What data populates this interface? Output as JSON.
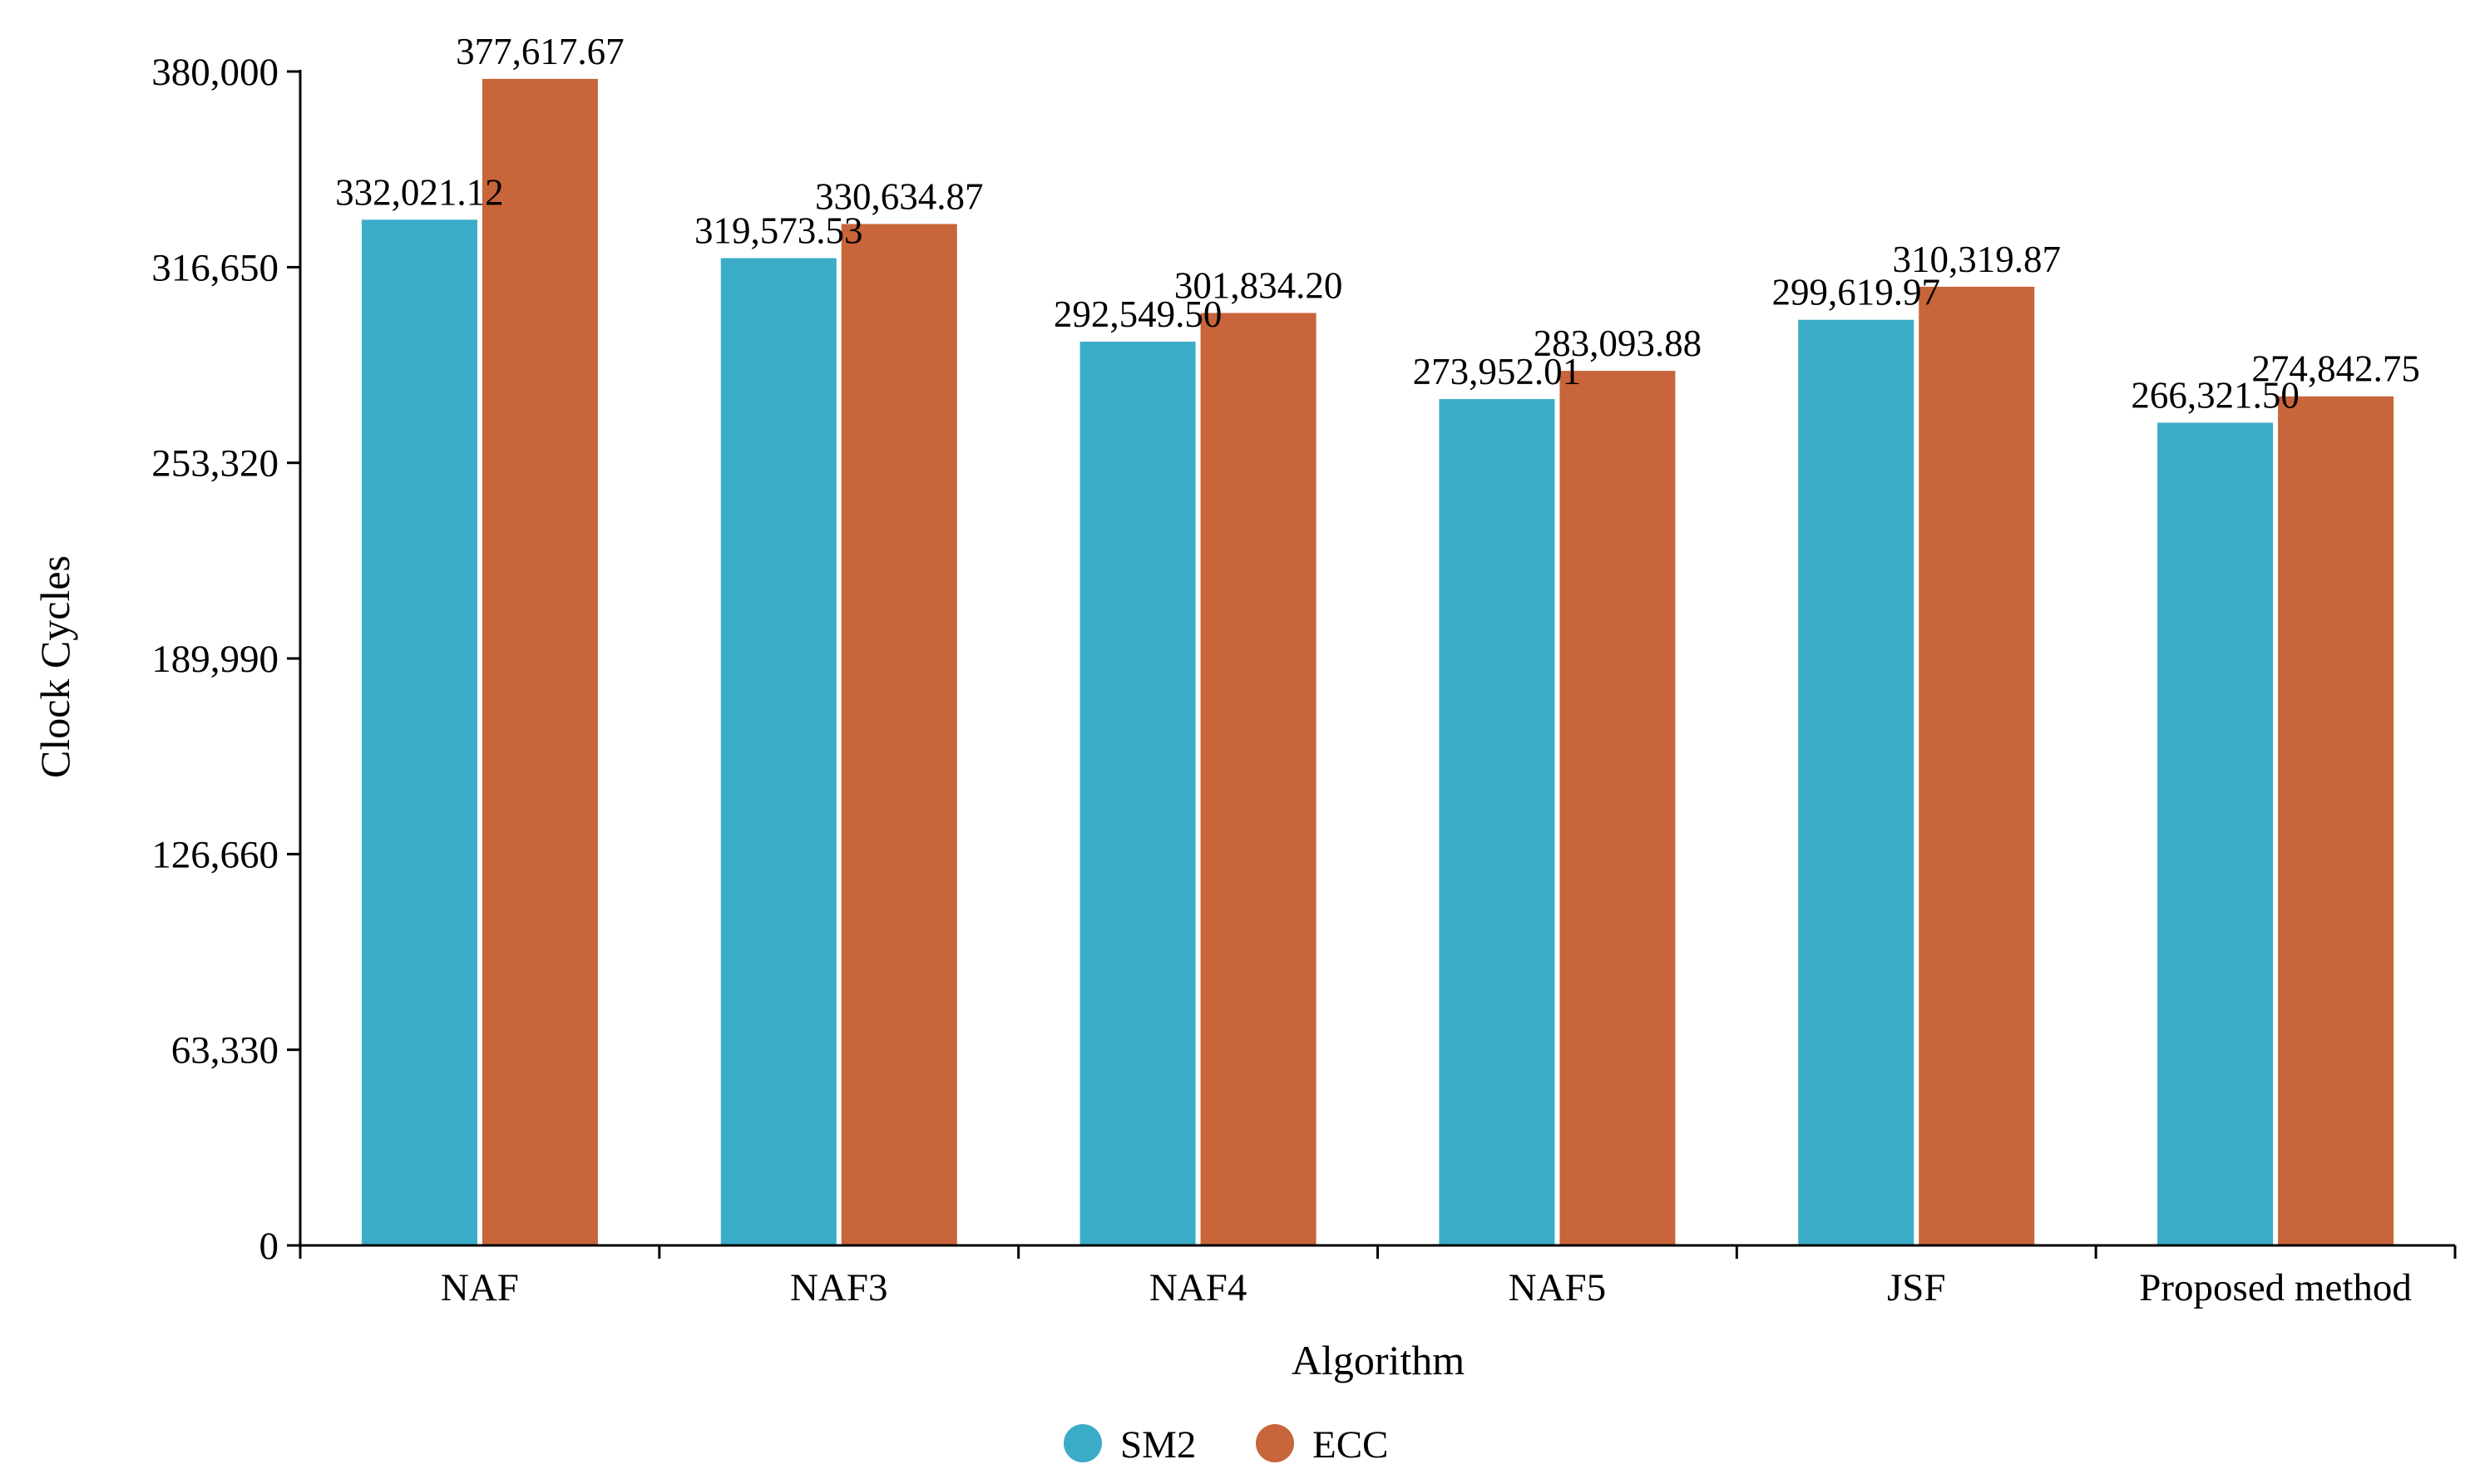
{
  "chart_data": {
    "type": "bar",
    "title": "",
    "xlabel": "Algorithm",
    "ylabel": "Clock Cycles",
    "categories": [
      "NAF",
      "NAF3",
      "NAF4",
      "NAF5",
      "JSF",
      "Proposed method"
    ],
    "series": [
      {
        "name": "SM2",
        "color": "#3AACC8",
        "values": [
          332021.12,
          319573.53,
          292549.5,
          273952.01,
          299619.97,
          266321.5
        ],
        "labels": [
          "332,021.12",
          "319,573.53",
          "292,549.50",
          "273,952.01",
          "299,619.97",
          "266,321.50"
        ]
      },
      {
        "name": "ECC",
        "color": "#C8653A",
        "values": [
          377617.67,
          330634.87,
          301834.2,
          283093.88,
          310319.87,
          274842.75
        ],
        "labels": [
          "377,617.67",
          "330,634.87",
          "301,834.20",
          "283,093.88",
          "310,319.87",
          "274,842.75"
        ]
      }
    ],
    "ylim": [
      0,
      380000
    ],
    "yticks": [
      0,
      63330,
      126660,
      189990,
      253320,
      316650,
      380000
    ],
    "ytick_labels": [
      "0",
      "63,330",
      "126,660",
      "189,990",
      "253,320",
      "316,650",
      "380,000"
    ],
    "grid": false,
    "legend_position": "bottom-center"
  }
}
